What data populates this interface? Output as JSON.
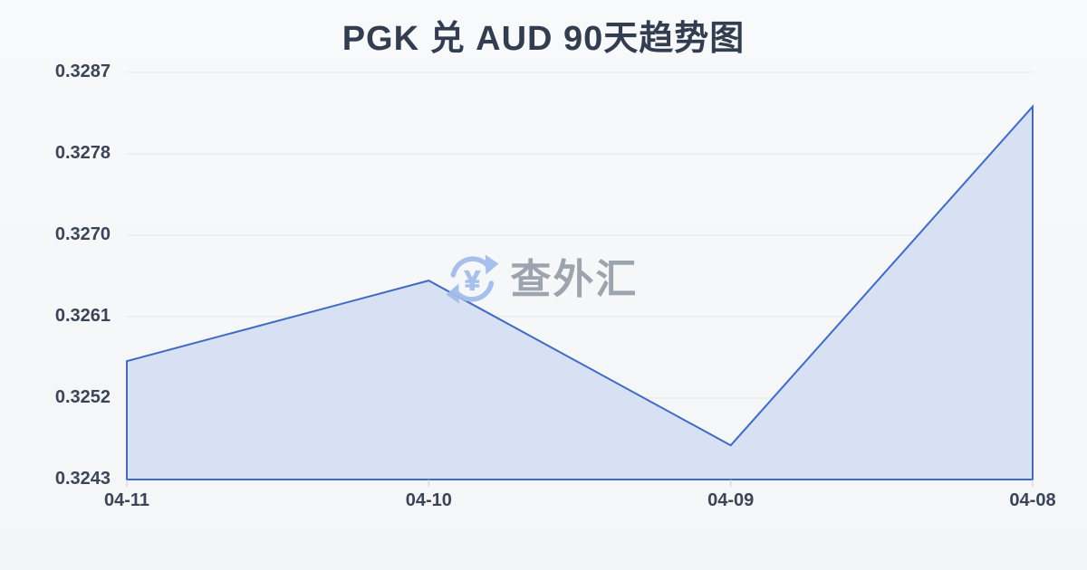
{
  "page_title": "PGK 兑 AUD 90天趋势图",
  "watermark": {
    "text": "查外汇",
    "currency_symbol": "¥",
    "icon": "currency-exchange-refresh-icon"
  },
  "chart_data": {
    "type": "area",
    "title": "PGK 兑 AUD 90天趋势图",
    "categories": [
      "04-11",
      "04-10",
      "04-09",
      "04-08"
    ],
    "values": [
      0.32558,
      0.32645,
      0.32467,
      0.32833
    ],
    "yticks": [
      0.3287,
      0.3278,
      0.327,
      0.3261,
      0.3252,
      0.3243
    ],
    "ytick_labels": [
      "0.3287",
      "0.3278",
      "0.3270",
      "0.3261",
      "0.3252",
      "0.3243"
    ],
    "ylim": [
      0.3243,
      0.3287
    ],
    "xlabel": "",
    "ylabel": "",
    "grid": true,
    "legend_position": "none",
    "colors": {
      "line": "#3f6bc4",
      "fill": "#d8e0f3",
      "grid": "#e4e6ea",
      "axis_tick": "#c9ccd2",
      "label": "#3b4557",
      "title": "#333d50",
      "watermark_text": "#9aa0aa",
      "watermark_icon": "#a3bdeb",
      "background": "#f5f6f8"
    }
  }
}
